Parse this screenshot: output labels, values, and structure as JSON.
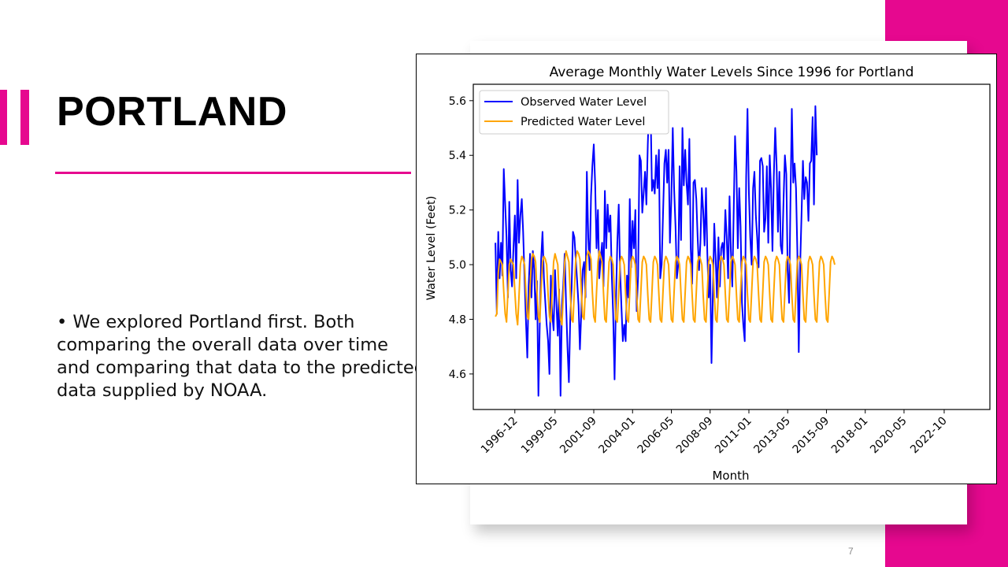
{
  "slide": {
    "title": "PORTLAND",
    "bullet": "•  We explored Portland first. Both comparing the overall data over time and comparing that data to the predicted data supplied by NOAA.",
    "page_number": "7",
    "accent_color": "#e6088f"
  },
  "chart_data": {
    "type": "line",
    "title": "Average Monthly Water Levels Since 1996 for Portland",
    "xlabel": "Month",
    "ylabel": "Water Level (Feet)",
    "x_ticks": [
      "1996-12",
      "1999-05",
      "2001-09",
      "2004-01",
      "2006-05",
      "2008-09",
      "2011-01",
      "2013-05",
      "2015-09",
      "2018-01",
      "2020-05",
      "2022-10"
    ],
    "y_ticks": [
      4.6,
      4.8,
      5.0,
      5.2,
      5.4,
      5.6
    ],
    "ylim": [
      4.47,
      5.66
    ],
    "xlim": [
      "1994-06",
      "2025-07"
    ],
    "x_start": "1995-10",
    "legend": "upper left",
    "grid": false,
    "series": [
      {
        "name": "Observed Water Level",
        "color": "#0000ff",
        "values": [
          5.08,
          4.82,
          5.12,
          4.95,
          5.08,
          4.96,
          5.35,
          5.22,
          5.1,
          4.88,
          5.23,
          4.98,
          4.92,
          5.06,
          5.18,
          4.95,
          5.31,
          5.08,
          5.18,
          5.24,
          5.12,
          4.95,
          4.8,
          4.66,
          4.92,
          5.04,
          4.88,
          5.05,
          4.98,
          4.8,
          4.94,
          4.52,
          4.78,
          5.02,
          5.12,
          4.95,
          4.86,
          4.78,
          4.72,
          4.6,
          4.96,
          4.82,
          4.76,
          4.98,
          4.86,
          4.74,
          4.91,
          4.52,
          4.85,
          4.93,
          5.04,
          4.86,
          4.7,
          4.57,
          4.8,
          4.92,
          5.12,
          5.1,
          5.02,
          4.94,
          4.85,
          4.69,
          4.83,
          4.98,
          5.01,
          4.88,
          5.34,
          5.1,
          4.98,
          5.25,
          5.36,
          5.44,
          5.29,
          5.06,
          5.2,
          4.95,
          5.02,
          5.08,
          4.92,
          5.27,
          5.06,
          5.22,
          5.12,
          5.18,
          4.96,
          4.82,
          4.58,
          4.86,
          5.08,
          5.22,
          4.98,
          4.84,
          4.72,
          4.78,
          4.72,
          4.96,
          4.88,
          5.24,
          4.99,
          5.16,
          5.06,
          5.2,
          4.83,
          4.96,
          5.4,
          5.38,
          5.19,
          5.26,
          5.34,
          5.22,
          5.44,
          5.6,
          5.58,
          5.27,
          5.31,
          5.26,
          5.4,
          5.28,
          5.42,
          4.95,
          5.0,
          5.18,
          5.37,
          5.42,
          5.3,
          5.42,
          5.08,
          5.24,
          5.5,
          5.28,
          5.14,
          4.95,
          5.0,
          5.36,
          5.09,
          5.5,
          5.29,
          5.42,
          5.3,
          5.22,
          5.46,
          5.06,
          4.93,
          5.3,
          5.31,
          5.24,
          5.1,
          4.98,
          5.08,
          5.28,
          5.2,
          5.07,
          5.28,
          5.04,
          4.88,
          5.0,
          4.64,
          4.9,
          5.15,
          5.02,
          4.88,
          5.1,
          4.92,
          5.06,
          5.08,
          5.02,
          5.2,
          5.1,
          4.95,
          5.25,
          5.05,
          4.92,
          5.18,
          5.47,
          5.34,
          5.06,
          5.28,
          5.14,
          4.86,
          4.78,
          4.72,
          5.32,
          5.57,
          5.26,
          5.1,
          5.0,
          5.28,
          5.34,
          5.18,
          5.1,
          4.99,
          5.38,
          5.39,
          5.36,
          5.12,
          5.17,
          5.36,
          5.08,
          5.4,
          5.28,
          5.05,
          5.32,
          5.5,
          5.36,
          5.12,
          5.34,
          5.07,
          5.04,
          5.24,
          5.4,
          5.33,
          4.98,
          4.86,
          5.22,
          5.57,
          5.3,
          5.37,
          5.28,
          5.05,
          4.68,
          5.0,
          5.18,
          5.38,
          5.24,
          5.32,
          5.3,
          5.16,
          5.37,
          5.38,
          5.54,
          5.22,
          5.58,
          5.4
        ]
      },
      {
        "name": "Predicted Water Level",
        "color": "#ffa500",
        "values": [
          4.81,
          4.82,
          4.97,
          5.02,
          5.01,
          5.0,
          4.9,
          4.82,
          4.79,
          4.9,
          5.0,
          5.02,
          5.01,
          5.0,
          4.9,
          4.82,
          4.78,
          4.88,
          5.0,
          5.03,
          5.02,
          5.0,
          4.9,
          4.81,
          4.8,
          4.92,
          5.02,
          5.04,
          5.03,
          5.01,
          4.9,
          4.81,
          4.79,
          4.91,
          5.01,
          5.03,
          5.02,
          5.0,
          4.89,
          4.81,
          4.79,
          4.9,
          5.01,
          5.04,
          5.02,
          5.0,
          4.88,
          4.8,
          4.78,
          4.89,
          5.01,
          5.05,
          5.03,
          5.01,
          4.9,
          4.8,
          4.79,
          4.91,
          5.02,
          5.05,
          5.04,
          5.02,
          4.9,
          4.81,
          4.8,
          4.92,
          5.03,
          5.05,
          5.04,
          5.02,
          4.9,
          4.81,
          4.79,
          4.9,
          5.01,
          5.05,
          5.03,
          5.01,
          4.9,
          4.8,
          4.79,
          4.9,
          5.01,
          5.03,
          5.02,
          5.0,
          4.89,
          4.8,
          4.79,
          4.9,
          5.01,
          5.03,
          5.02,
          5.0,
          4.89,
          4.8,
          4.79,
          4.9,
          5.01,
          5.03,
          5.02,
          5.0,
          4.89,
          4.8,
          4.79,
          4.9,
          5.01,
          5.03,
          5.02,
          5.0,
          4.89,
          4.8,
          4.79,
          4.9,
          5.01,
          5.03,
          5.02,
          5.0,
          4.89,
          4.8,
          4.79,
          4.9,
          5.01,
          5.03,
          5.02,
          5.0,
          4.89,
          4.8,
          4.79,
          4.9,
          5.01,
          5.03,
          5.02,
          5.0,
          4.89,
          4.8,
          4.79,
          4.9,
          5.01,
          5.03,
          5.02,
          5.0,
          4.89,
          4.8,
          4.79,
          4.9,
          5.01,
          5.03,
          5.02,
          5.0,
          4.89,
          4.8,
          4.79,
          4.9,
          5.01,
          5.03,
          5.02,
          5.0,
          4.89,
          4.8,
          4.79,
          4.9,
          5.01,
          5.03,
          5.02,
          5.0,
          4.89,
          4.8,
          4.79,
          4.9,
          5.01,
          5.03,
          5.02,
          5.0,
          4.89,
          4.8,
          4.79,
          4.9,
          5.01,
          5.03,
          5.02,
          5.0,
          4.89,
          4.8,
          4.79,
          4.9,
          5.01,
          5.03,
          5.02,
          5.0,
          4.89,
          4.8,
          4.79,
          4.9,
          5.01,
          5.03,
          5.02,
          5.0,
          4.89,
          4.8,
          4.79,
          4.9,
          5.01,
          5.03,
          5.02,
          5.0,
          4.89,
          4.8,
          4.79,
          4.9,
          5.01,
          5.03,
          5.02,
          5.0,
          4.89,
          4.8,
          4.79,
          4.9,
          5.01,
          5.03,
          5.02,
          5.0,
          4.89,
          4.8,
          4.79,
          4.9,
          5.01,
          5.03,
          5.02,
          5.0,
          4.89,
          4.8,
          4.79,
          4.9,
          5.01,
          5.03,
          5.02,
          5.0,
          4.89,
          4.8,
          4.79,
          4.9,
          5.01,
          5.03,
          5.02,
          5.0
        ]
      }
    ]
  }
}
